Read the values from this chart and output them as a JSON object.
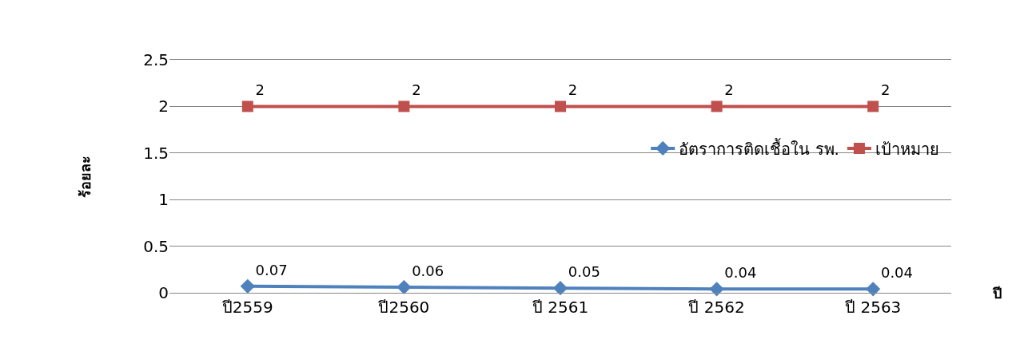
{
  "chart_data": {
    "type": "line",
    "ylabel": "ร้อยละ",
    "xlabel": "ปี",
    "categories": [
      "ปี2559",
      "ปี2560",
      "ปี 2561",
      "ปี 2562",
      "ปี 2563"
    ],
    "series": [
      {
        "name": "อัตราการติดเชื้อใน รพ.",
        "color": "#4f81bd",
        "marker": "diamond",
        "values": [
          0.07,
          0.06,
          0.05,
          0.04,
          0.04
        ]
      },
      {
        "name": "เป้าหมาย",
        "color": "#c0504d",
        "marker": "square",
        "values": [
          2,
          2,
          2,
          2,
          2
        ]
      }
    ],
    "ylim": [
      0,
      2.5
    ],
    "yticks": [
      0,
      0.5,
      1,
      1.5,
      2,
      2.5
    ],
    "grid": "y",
    "legend": "right",
    "data_labels": true
  }
}
